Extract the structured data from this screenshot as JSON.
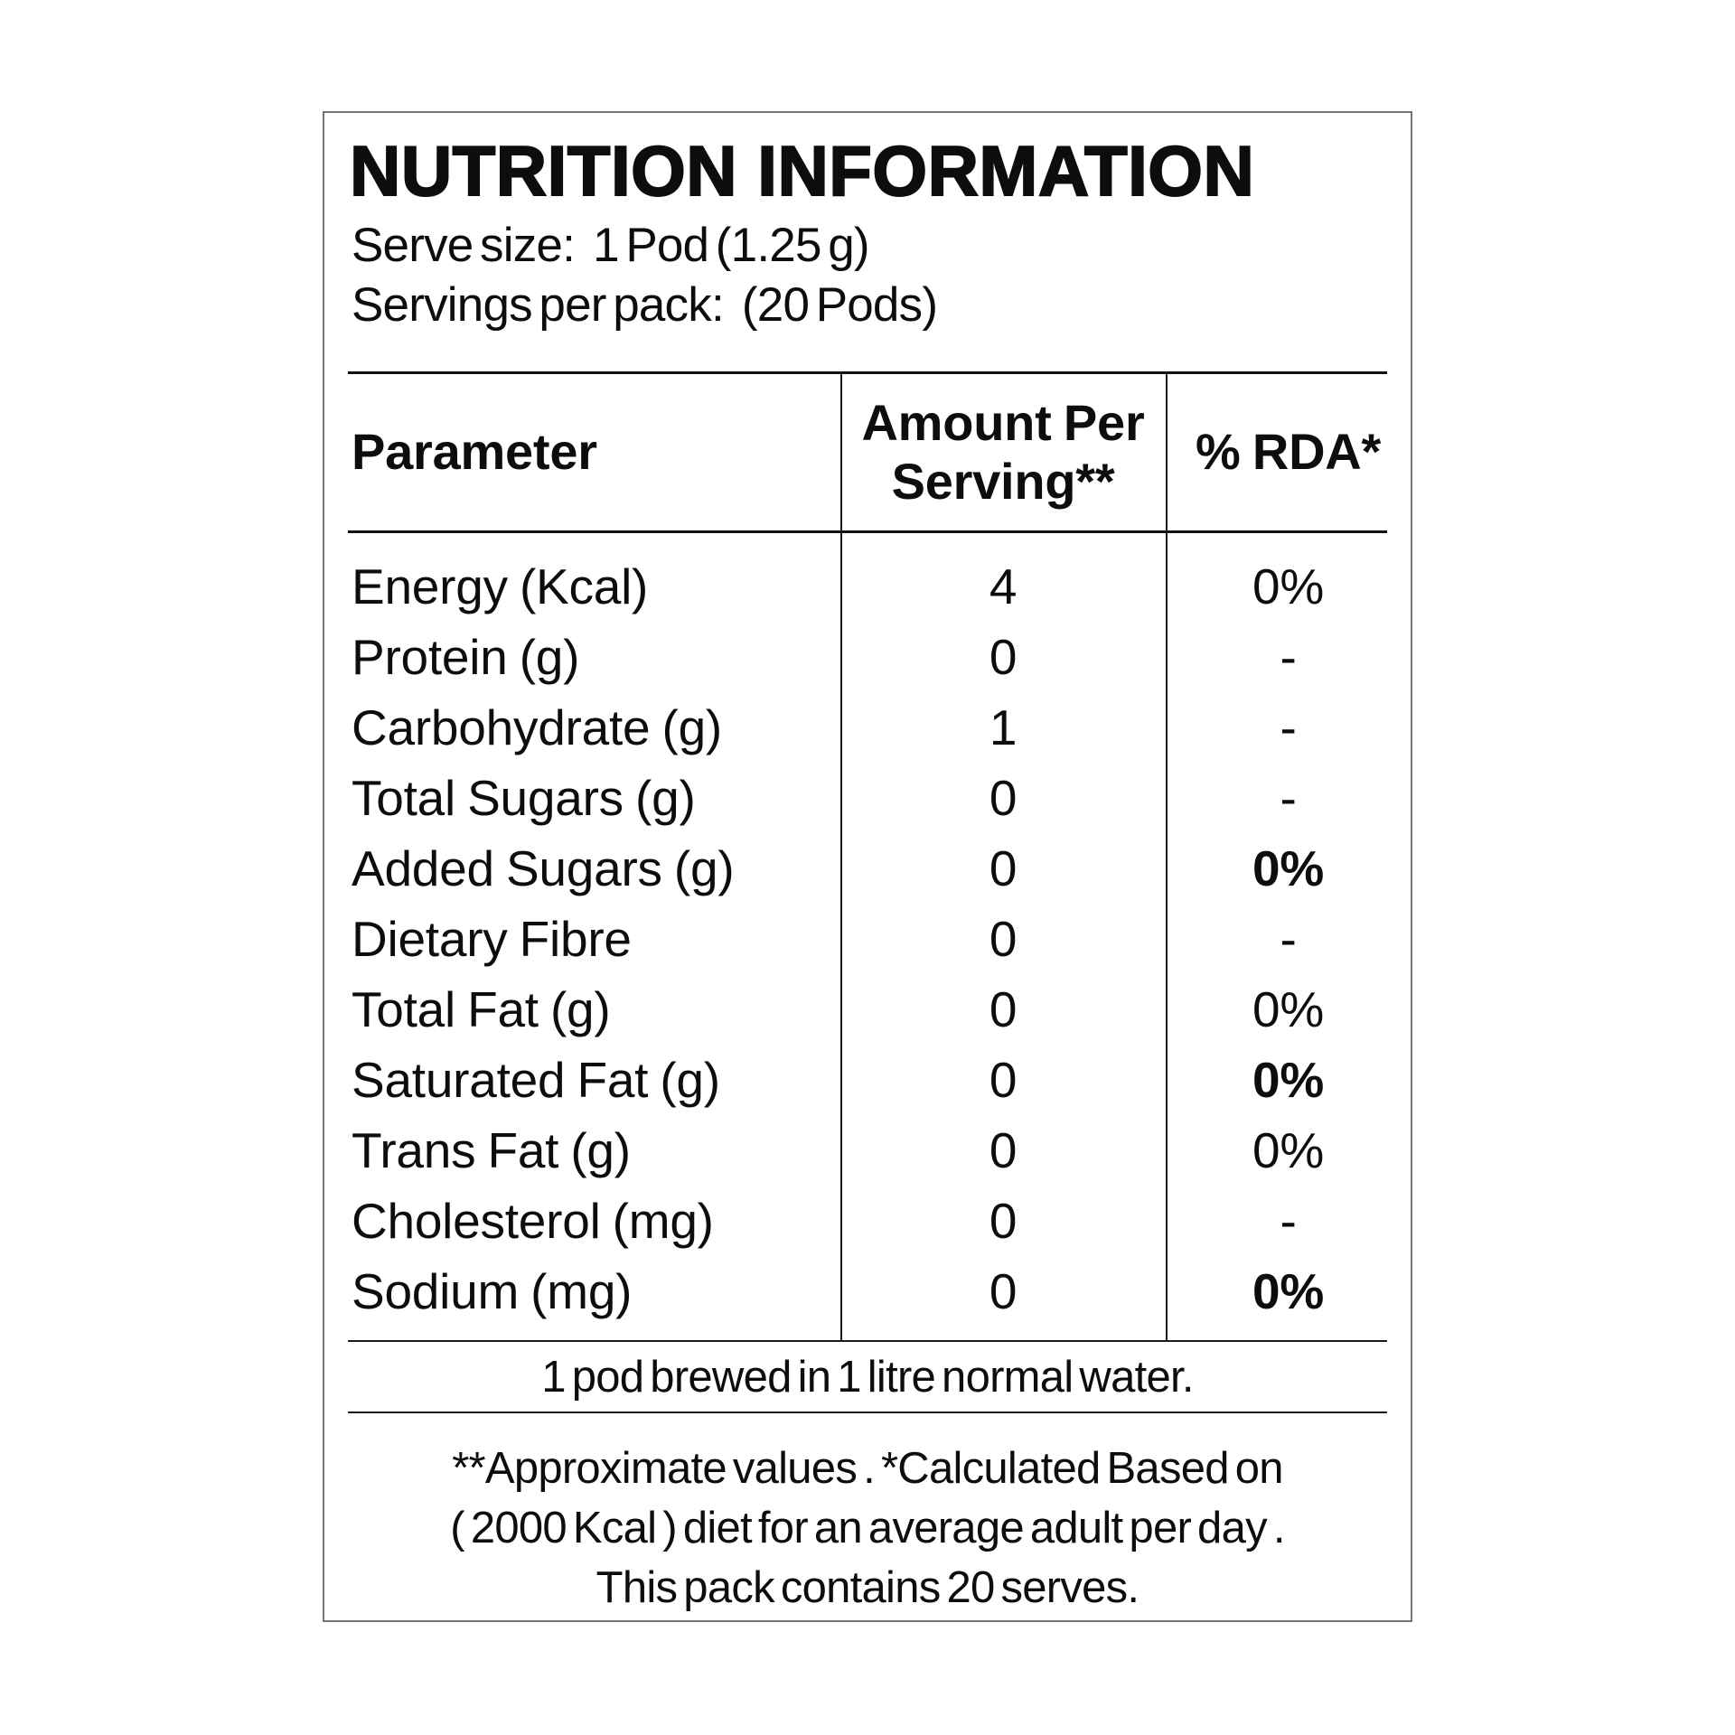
{
  "label": {
    "title": "NUTRITION INFORMATION",
    "serve_size_label": "Serve size:",
    "serve_size_value": "1 Pod (1.25 g)",
    "servings_label": "Servings per pack:",
    "servings_value": "(20 Pods)",
    "table": {
      "columns": [
        "Parameter",
        "Amount Per Serving**",
        "% RDA*"
      ],
      "rows": [
        {
          "parameter": "Energy (Kcal)",
          "amount": "4",
          "rda": "0%",
          "rda_bold": false
        },
        {
          "parameter": "Protein (g)",
          "amount": "0",
          "rda": "-",
          "rda_bold": false
        },
        {
          "parameter": "Carbohydrate (g)",
          "amount": "1",
          "rda": "-",
          "rda_bold": false
        },
        {
          "parameter": "Total Sugars (g)",
          "amount": "0",
          "rda": "-",
          "rda_bold": false
        },
        {
          "parameter": "Added Sugars (g)",
          "amount": "0",
          "rda": "0%",
          "rda_bold": true
        },
        {
          "parameter": "Dietary Fibre",
          "amount": "0",
          "rda": "-",
          "rda_bold": false
        },
        {
          "parameter": "Total Fat (g)",
          "amount": "0",
          "rda": "0%",
          "rda_bold": false
        },
        {
          "parameter": "Saturated Fat (g)",
          "amount": "0",
          "rda": "0%",
          "rda_bold": true
        },
        {
          "parameter": "Trans Fat (g)",
          "amount": "0",
          "rda": "0%",
          "rda_bold": false
        },
        {
          "parameter": "Cholesterol (mg)",
          "amount": "0",
          "rda": "-",
          "rda_bold": false
        },
        {
          "parameter": "Sodium (mg)",
          "amount": "0",
          "rda": "0%",
          "rda_bold": true
        }
      ]
    },
    "brew_note": "1 pod brewed in 1 litre normal water.",
    "footnotes": [
      "**Approximate values . *Calculated Based on",
      "( 2000 Kcal ) diet for an average adult per day .",
      "This pack contains 20 serves."
    ],
    "colors": {
      "text": "#0d0d0d",
      "box_border": "#757575",
      "rule": "#111111"
    }
  }
}
